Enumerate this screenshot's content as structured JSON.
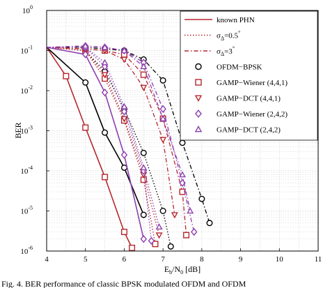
{
  "chart_data": {
    "type": "line",
    "title": "",
    "xlabel": {
      "base": "E",
      "sub1": "b",
      "mid": "/N",
      "sub2": "0",
      "unit": " [dB]"
    },
    "ylabel": "BER",
    "xlim": [
      4,
      11
    ],
    "ylim": [
      1e-06,
      1
    ],
    "yscale": "log",
    "grid": true,
    "legend_placement": "top-right",
    "x_ticks": [
      "4",
      "5",
      "6",
      "7",
      "8",
      "9",
      "10",
      "11"
    ],
    "y_ticks": [
      {
        "base": "10",
        "exp": "0"
      },
      {
        "base": "10",
        "exp": "-1"
      },
      {
        "base": "10",
        "exp": "-2"
      },
      {
        "base": "10",
        "exp": "-3"
      },
      {
        "base": "10",
        "exp": "-4"
      },
      {
        "base": "10",
        "exp": "-5"
      },
      {
        "base": "10",
        "exp": "-6"
      }
    ],
    "legend": [
      {
        "text": "known PHN",
        "color": "#b5272d",
        "style": "solid",
        "marker": "none"
      },
      {
        "text": "σ",
        "sub": "Δ",
        "tail": "=0.5",
        "deg": "°",
        "color": "#b5272d",
        "style": "dotted",
        "marker": "none"
      },
      {
        "text": "σ",
        "sub": "Δ",
        "tail": "=3",
        "deg": "°",
        "color": "#b5272d",
        "style": "dashdot",
        "marker": "none"
      },
      {
        "text": "OFDM−BPSK",
        "color": "#000000",
        "style": "none",
        "marker": "circle"
      },
      {
        "text": "GAMP−Wiener (4,4,1)",
        "color": "#b5272d",
        "style": "none",
        "marker": "square"
      },
      {
        "text": "GAMP−DCT (4,4,1)",
        "color": "#b5272d",
        "style": "none",
        "marker": "triangle-down"
      },
      {
        "text": "GAMP−Wiener (2,4,2)",
        "color": "#8e3fb0",
        "style": "none",
        "marker": "diamond"
      },
      {
        "text": "GAMP−DCT (2,4,2)",
        "color": "#8e3fb0",
        "style": "none",
        "marker": "triangle-up"
      }
    ],
    "series": [
      {
        "color": "#000000",
        "dash": "solid",
        "marker": "circle",
        "x": [
          4,
          5,
          5.5,
          6,
          6.5
        ],
        "y": [
          0.12,
          0.016,
          0.0009,
          0.00012,
          8e-06
        ]
      },
      {
        "color": "#000000",
        "dash": "dotted",
        "marker": "circle",
        "x": [
          4,
          5,
          5.5,
          6,
          6.5,
          7,
          7.2
        ],
        "y": [
          0.12,
          0.1,
          0.03,
          0.0035,
          0.00028,
          1e-05,
          1.3e-06
        ]
      },
      {
        "color": "#000000",
        "dash": "dashdot",
        "marker": "circle",
        "x": [
          4,
          5,
          5.5,
          6,
          6.5,
          7,
          7.5,
          8,
          8.2
        ],
        "y": [
          0.12,
          0.12,
          0.11,
          0.1,
          0.06,
          0.018,
          0.0005,
          2e-05,
          5e-06
        ]
      },
      {
        "color": "#b5272d",
        "dash": "solid",
        "marker": "square",
        "x": [
          4,
          4.5,
          5,
          5.5,
          6,
          6.2
        ],
        "y": [
          0.12,
          0.023,
          0.0012,
          7e-05,
          3e-06,
          1.2e-06
        ]
      },
      {
        "color": "#b5272d",
        "dash": "dotted",
        "marker": "square",
        "x": [
          4,
          5,
          5.5,
          6,
          6.5,
          6.8
        ],
        "y": [
          0.12,
          0.1,
          0.02,
          0.0018,
          6e-05,
          1.5e-06
        ]
      },
      {
        "color": "#b5272d",
        "dash": "dashdot",
        "marker": "square",
        "x": [
          4,
          5,
          5.5,
          6,
          6.5,
          7,
          7.5,
          7.6
        ],
        "y": [
          0.12,
          0.11,
          0.1,
          0.08,
          0.025,
          0.002,
          3e-05,
          2.5e-06
        ]
      },
      {
        "color": "#b5272d",
        "dash": "dotted",
        "marker": "triangle-down",
        "x": [
          4,
          5,
          5.5,
          6,
          6.5,
          6.9
        ],
        "y": [
          0.12,
          0.1,
          0.025,
          0.002,
          8e-05,
          2.5e-06
        ]
      },
      {
        "color": "#b5272d",
        "dash": "dashdot",
        "marker": "triangle-down",
        "x": [
          4,
          5,
          5.5,
          6,
          6.5,
          7,
          7.3
        ],
        "y": [
          0.12,
          0.11,
          0.1,
          0.06,
          0.012,
          0.0006,
          8e-06
        ]
      },
      {
        "color": "#8e3fb0",
        "dash": "solid",
        "marker": "diamond",
        "x": [
          4,
          5,
          5.5,
          6,
          6.5
        ],
        "y": [
          0.12,
          0.08,
          0.009,
          0.00025,
          2e-06
        ]
      },
      {
        "color": "#8e3fb0",
        "dash": "dotted",
        "marker": "diamond",
        "x": [
          4,
          5,
          5.5,
          6,
          6.5,
          6.7
        ],
        "y": [
          0.12,
          0.12,
          0.04,
          0.003,
          0.0001,
          1.8e-06
        ]
      },
      {
        "color": "#8e3fb0",
        "dash": "dashdot",
        "marker": "diamond",
        "x": [
          4,
          5,
          5.5,
          6,
          6.5,
          7,
          7.5,
          7.8
        ],
        "y": [
          0.12,
          0.13,
          0.12,
          0.1,
          0.05,
          0.0035,
          5e-05,
          3e-06
        ]
      },
      {
        "color": "#8e3fb0",
        "dash": "dotted",
        "marker": "triangle-up",
        "x": [
          4,
          5,
          5.5,
          6,
          6.5,
          6.9
        ],
        "y": [
          0.12,
          0.12,
          0.05,
          0.004,
          0.00012,
          4e-06
        ]
      },
      {
        "color": "#8e3fb0",
        "dash": "dashdot",
        "marker": "triangle-up",
        "x": [
          4,
          5,
          5.5,
          6,
          6.5,
          7,
          7.5,
          7.7
        ],
        "y": [
          0.12,
          0.13,
          0.12,
          0.1,
          0.04,
          0.002,
          8e-05,
          1e-05
        ]
      }
    ]
  },
  "caption": "Fig. 4.  BER performance of classic BPSK modulated OFDM and OFDM"
}
